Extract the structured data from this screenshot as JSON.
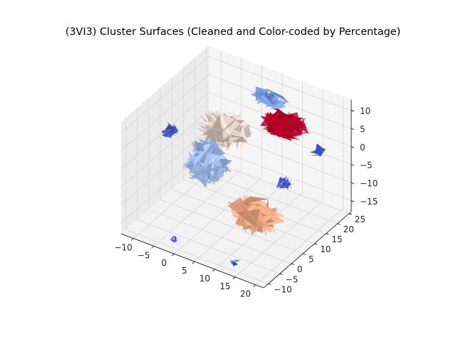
{
  "chart_data": {
    "type": "3d-surface",
    "title": "(3VI3) Cluster Surfaces (Cleaned and Color-coded by Percentage)",
    "xlabel": "",
    "ylabel": "",
    "zlabel": "",
    "grid": true,
    "colormap": "coolwarm",
    "axes": {
      "x": {
        "ticks": [
          -10,
          -5,
          0,
          5,
          10,
          15,
          20
        ],
        "lim": [
          -13,
          22
        ]
      },
      "y": {
        "ticks": [
          -10,
          -5,
          0,
          5,
          10,
          15,
          20,
          25
        ],
        "lim": [
          -12,
          26
        ]
      },
      "z": {
        "ticks": [
          -15,
          -10,
          -5,
          0,
          5,
          10
        ],
        "lim": [
          -18,
          13
        ]
      }
    },
    "clusters": [
      {
        "id": "c1",
        "color": "#b40426",
        "center": [
          12,
          15,
          8
        ],
        "spread": [
          6,
          5,
          3
        ]
      },
      {
        "id": "c2",
        "color": "#7a9ff0",
        "center": [
          4,
          22,
          8
        ],
        "spread": [
          5,
          3,
          2
        ]
      },
      {
        "id": "c3",
        "color": "#d8c6bd",
        "center": [
          0,
          10,
          4
        ],
        "spread": [
          7,
          6,
          4
        ]
      },
      {
        "id": "c4",
        "color": "#9eb9ea",
        "center": [
          -3,
          8,
          -5
        ],
        "spread": [
          6,
          6,
          6
        ]
      },
      {
        "id": "c5",
        "color": "#f0a784",
        "center": [
          12,
          2,
          -10
        ],
        "spread": [
          7,
          6,
          4
        ]
      },
      {
        "id": "c6",
        "color": "#4359c9",
        "center": [
          -10,
          4,
          3
        ],
        "spread": [
          2,
          3,
          2
        ]
      },
      {
        "id": "c7",
        "color": "#3b4cc0",
        "center": [
          15,
          10,
          -4
        ],
        "spread": [
          2,
          3,
          2
        ]
      },
      {
        "id": "c8",
        "color": "#3b4cc0",
        "center": [
          17,
          20,
          0
        ],
        "spread": [
          2,
          2,
          2
        ]
      },
      {
        "id": "c9",
        "color": "#3b4cc0",
        "center": [
          0,
          -12,
          -14
        ],
        "spread": [
          1,
          1,
          1
        ]
      },
      {
        "id": "c10",
        "color": "#3b4cc0",
        "center": [
          13,
          -8,
          -17
        ],
        "spread": [
          1.5,
          1.5,
          1
        ]
      }
    ]
  }
}
